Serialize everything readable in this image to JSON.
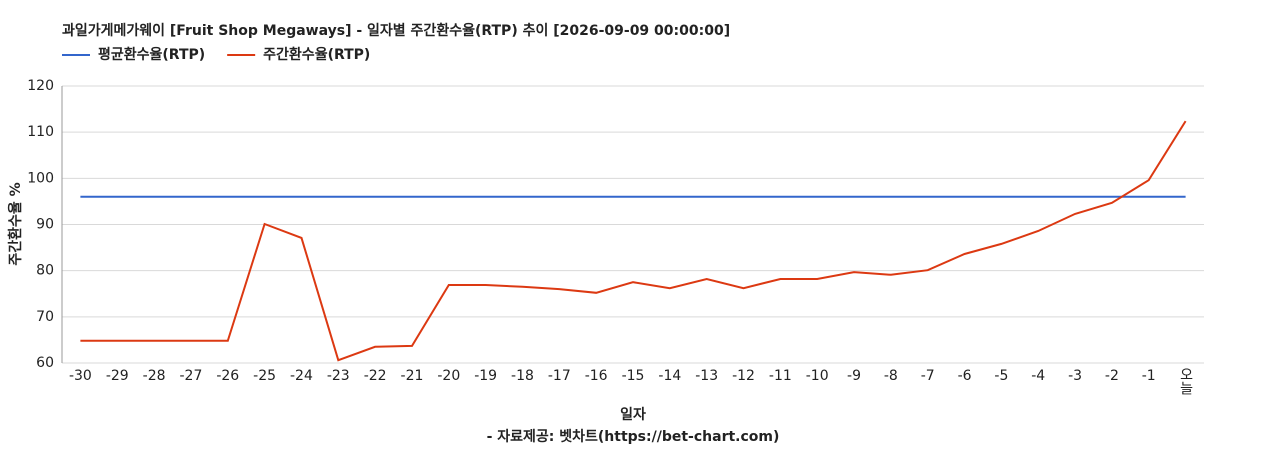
{
  "chart_data": {
    "type": "line",
    "title": "과일가게메가웨이 [Fruit Shop Megaways] - 일자별 주간환수율(RTP) 추이 [2026-09-09 00:00:00]",
    "x_label": "일자",
    "y_label": "주간환수율 %",
    "source": "- 자료제공: 벳차트(https://bet-chart.com)",
    "categories": [
      "-30",
      "-29",
      "-28",
      "-27",
      "-26",
      "-25",
      "-24",
      "-23",
      "-22",
      "-21",
      "-20",
      "-19",
      "-18",
      "-17",
      "-16",
      "-15",
      "-14",
      "-13",
      "-12",
      "-11",
      "-10",
      "-9",
      "-8",
      "-7",
      "-6",
      "-5",
      "-4",
      "-3",
      "-2",
      "-1",
      "오늘"
    ],
    "series": [
      {
        "name": "평균환수율(RTP)",
        "color": "#3366cc",
        "values": [
          96,
          96,
          96,
          96,
          96,
          96,
          96,
          96,
          96,
          96,
          96,
          96,
          96,
          96,
          96,
          96,
          96,
          96,
          96,
          96,
          96,
          96,
          96,
          96,
          96,
          96,
          96,
          96,
          96,
          96,
          96
        ]
      },
      {
        "name": "주간환수율(RTP)",
        "color": "#dc3912",
        "values": [
          64.8,
          64.8,
          64.8,
          64.8,
          64.8,
          90.1,
          87.1,
          60.6,
          63.5,
          63.7,
          76.9,
          76.9,
          76.5,
          76.0,
          75.2,
          77.5,
          76.2,
          78.2,
          76.2,
          78.2,
          78.2,
          79.7,
          79.1,
          80.1,
          83.6,
          85.8,
          88.6,
          92.3,
          94.7,
          99.6,
          112.4
        ]
      }
    ],
    "ylim": [
      60,
      120
    ],
    "yticks": [
      60,
      70,
      80,
      90,
      100,
      110,
      120
    ],
    "grid": true,
    "legend": "top-left"
  }
}
